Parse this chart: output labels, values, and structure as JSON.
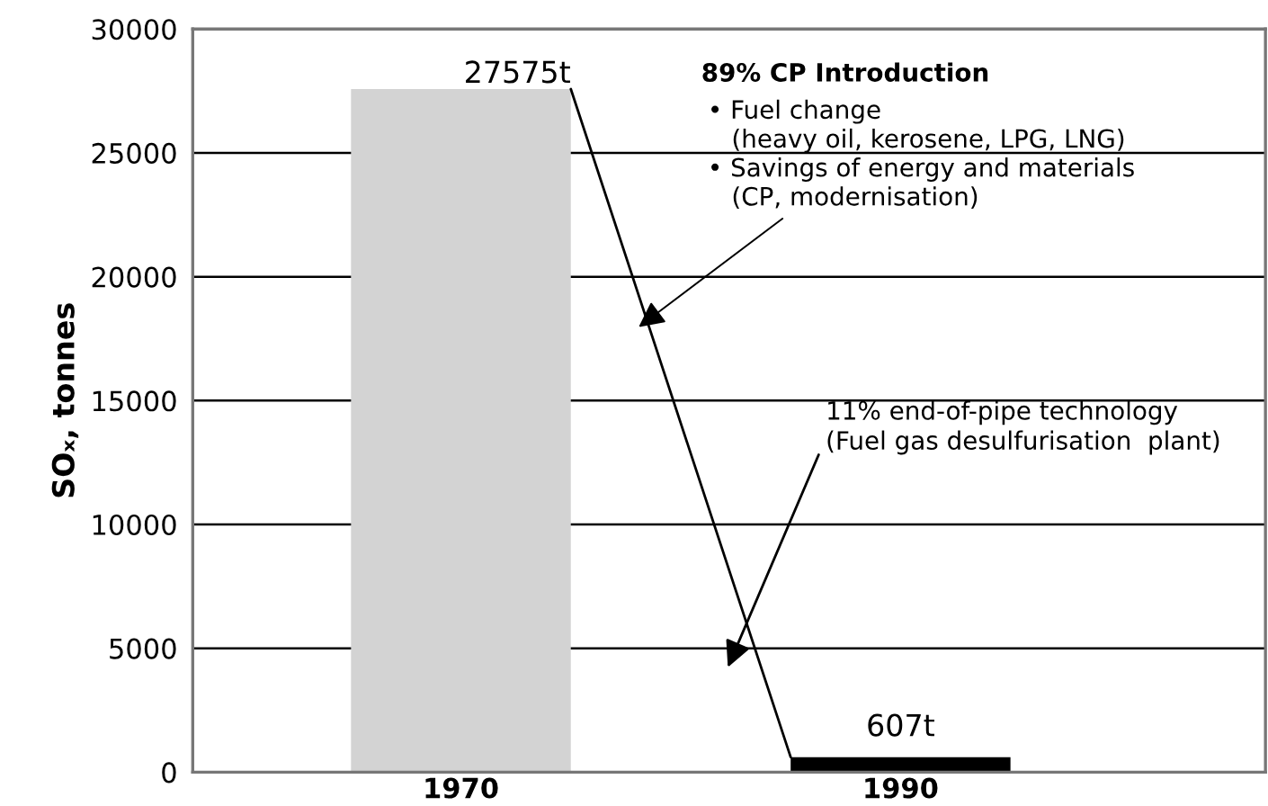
{
  "chart_data": {
    "type": "bar",
    "ylabel": "SOₓ, tonnes",
    "categories": [
      "1970",
      "1990"
    ],
    "values": [
      27575,
      607
    ],
    "colors": [
      "#d3d3d3",
      "#000000"
    ],
    "value_labels": [
      "27575t",
      "607t"
    ],
    "ylim": [
      0,
      30000
    ],
    "yticks": [
      0,
      5000,
      10000,
      15000,
      20000,
      25000,
      30000
    ],
    "grid": "y",
    "annotations": [
      "89% CP Introduction",
      "• Fuel change\n   (heavy oil, kerosene, LPG, LNG)\n• Savings of energy and materials\n   (CP, modernisation)",
      "11% end-of-pipe technology\n(Fuel gas desulfurisation  plant)"
    ]
  }
}
